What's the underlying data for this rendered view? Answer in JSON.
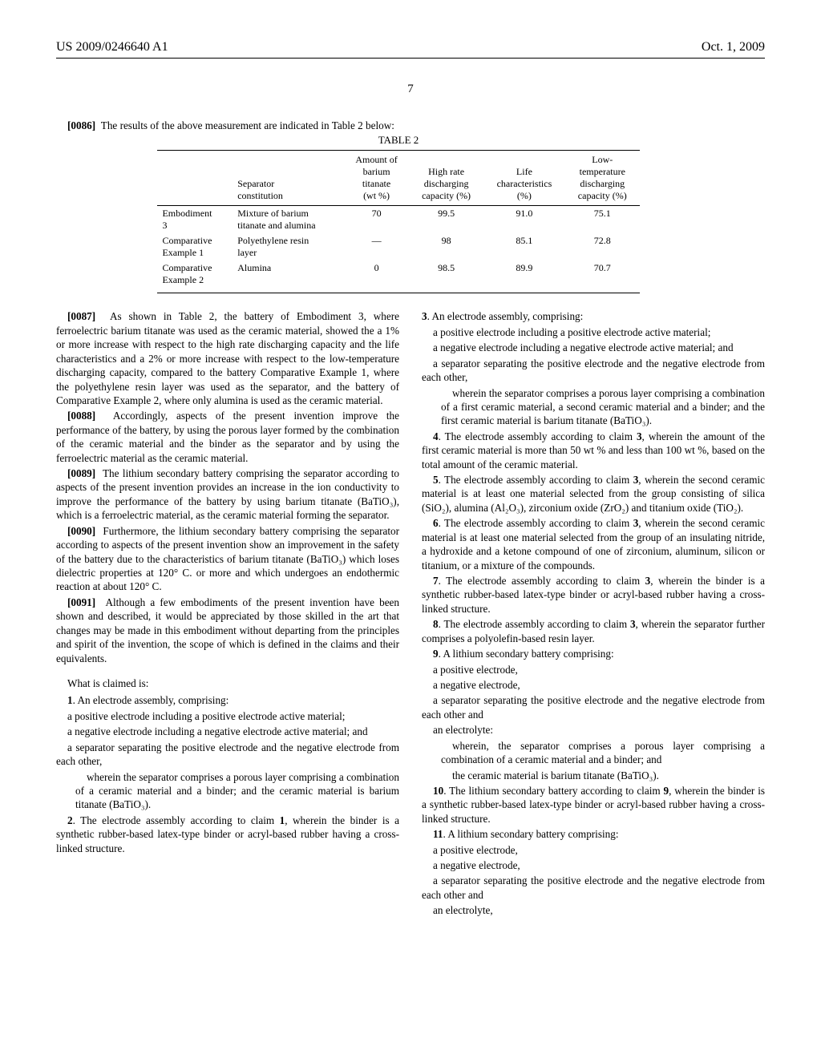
{
  "header": {
    "pub_number": "US 2009/0246640 A1",
    "pub_date": "Oct. 1, 2009"
  },
  "page_number": "7",
  "intro_para": {
    "num": "[0086]",
    "text": "The results of the above measurement are indicated in Table 2 below:"
  },
  "table": {
    "caption": "TABLE 2",
    "headers": {
      "c1": "",
      "c2": "Separator constitution",
      "c3": "Amount of barium titanate (wt %)",
      "c4": "High rate discharging capacity (%)",
      "c5": "Life characteristics (%)",
      "c6": "Low-temperature discharging capacity (%)"
    },
    "rows": [
      {
        "c1": "Embodiment 3",
        "c2": "Mixture of barium titanate and alumina",
        "c3": "70",
        "c4": "99.5",
        "c5": "91.0",
        "c6": "75.1"
      },
      {
        "c1": "Comparative Example 1",
        "c2": "Polyethylene resin layer",
        "c3": "—",
        "c4": "98",
        "c5": "85.1",
        "c6": "72.8"
      },
      {
        "c1": "Comparative Example 2",
        "c2": "Alumina",
        "c3": "0",
        "c4": "98.5",
        "c5": "89.9",
        "c6": "70.7"
      }
    ]
  },
  "left_paras": [
    {
      "num": "[0087]",
      "text": "As shown in Table 2, the battery of Embodiment 3, where ferroelectric barium titanate was used as the ceramic material, showed the a 1% or more increase with respect to the high rate discharging capacity and the life characteristics and a 2% or more increase with respect to the low-temperature discharging capacity, compared to the battery Comparative Example 1, where the polyethylene resin layer was used as the separator, and the battery of Comparative Example 2, where only alumina is used as the ceramic material."
    },
    {
      "num": "[0088]",
      "text": "Accordingly, aspects of the present invention improve the performance of the battery, by using the porous layer formed by the combination of the ceramic material and the binder as the separator and by using the ferroelectric material as the ceramic material."
    },
    {
      "num": "[0089]",
      "text": "The lithium secondary battery comprising the separator according to aspects of the present invention provides an increase in the ion conductivity to improve the performance of the battery by using barium titanate (BaTiO₃), which is a ferroelectric material, as the ceramic material forming the separator."
    },
    {
      "num": "[0090]",
      "text": "Furthermore, the lithium secondary battery comprising the separator according to aspects of the present invention show an improvement in the safety of the battery due to the characteristics of barium titanate (BaTiO₃) which loses dielectric properties at 120° C. or more and which undergoes an endothermic reaction at about 120° C."
    },
    {
      "num": "[0091]",
      "text": "Although a few embodiments of the present invention have been shown and described, it would be appreciated by those skilled in the art that changes may be made in this embodiment without departing from the principles and spirit of the invention, the scope of which is defined in the claims and their equivalents."
    }
  ],
  "claims_intro": "What is claimed is:",
  "claim1": {
    "head": "1. An electrode assembly, comprising:",
    "lines": [
      "a positive electrode including a positive electrode active material;",
      "a negative electrode including a negative electrode active material; and",
      "a separator separating the positive electrode and the negative electrode from each other,"
    ],
    "nested": "wherein the separator comprises a porous layer comprising a combination of a ceramic material and a binder; and the ceramic material is barium titanate (BaTiO₃)."
  },
  "claim2": "2. The electrode assembly according to claim 1, wherein the binder is a synthetic rubber-based latex-type binder or acryl-based rubber having a cross-linked structure.",
  "claim3": {
    "head": "3. An electrode assembly, comprising:",
    "lines": [
      "a positive electrode including a positive electrode active material;",
      "a negative electrode including a negative electrode active material; and",
      "a separator separating the positive electrode and the negative electrode from each other,"
    ],
    "nested": "wherein the separator comprises a porous layer comprising a combination of a first ceramic material, a second ceramic material and a binder; and the first ceramic material is barium titanate (BaTiO₃)."
  },
  "claim4": "4. The electrode assembly according to claim 3, wherein the amount of the first ceramic material is more than 50 wt % and less than 100 wt %, based on the total amount of the ceramic material.",
  "claim5": "5. The electrode assembly according to claim 3, wherein the second ceramic material is at least one material selected from the group consisting of silica (SiO₂), alumina (Al₂O₃), zirconium oxide (ZrO₂) and titanium oxide (TiO₂).",
  "claim6": "6. The electrode assembly according to claim 3, wherein the second ceramic material is at least one material selected from the group of an insulating nitride, a hydroxide and a ketone compound of one of zirconium, aluminum, silicon or titanium, or a mixture of the compounds.",
  "claim7": "7. The electrode assembly according to claim 3, wherein the binder is a synthetic rubber-based latex-type binder or acryl-based rubber having a cross-linked structure.",
  "claim8": "8. The electrode assembly according to claim 3, wherein the separator further comprises a polyolefin-based resin layer.",
  "claim9": {
    "head": "9. A lithium secondary battery comprising:",
    "lines": [
      "a positive electrode,",
      "a negative electrode,",
      "a separator separating the positive electrode and the negative electrode from each other and",
      "an electrolyte:"
    ],
    "nested": [
      "wherein, the separator comprises a porous layer comprising a combination of a ceramic material and a binder; and",
      "the ceramic material is barium titanate (BaTiO₃)."
    ]
  },
  "claim10": "10. The lithium secondary battery according to claim 9, wherein the binder is a synthetic rubber-based latex-type binder or acryl-based rubber having a cross-linked structure.",
  "claim11": {
    "head": "11. A lithium secondary battery comprising:",
    "lines": [
      "a positive electrode,",
      "a negative electrode,",
      "a separator separating the positive electrode and the negative electrode from each other and",
      "an electrolyte,"
    ]
  }
}
